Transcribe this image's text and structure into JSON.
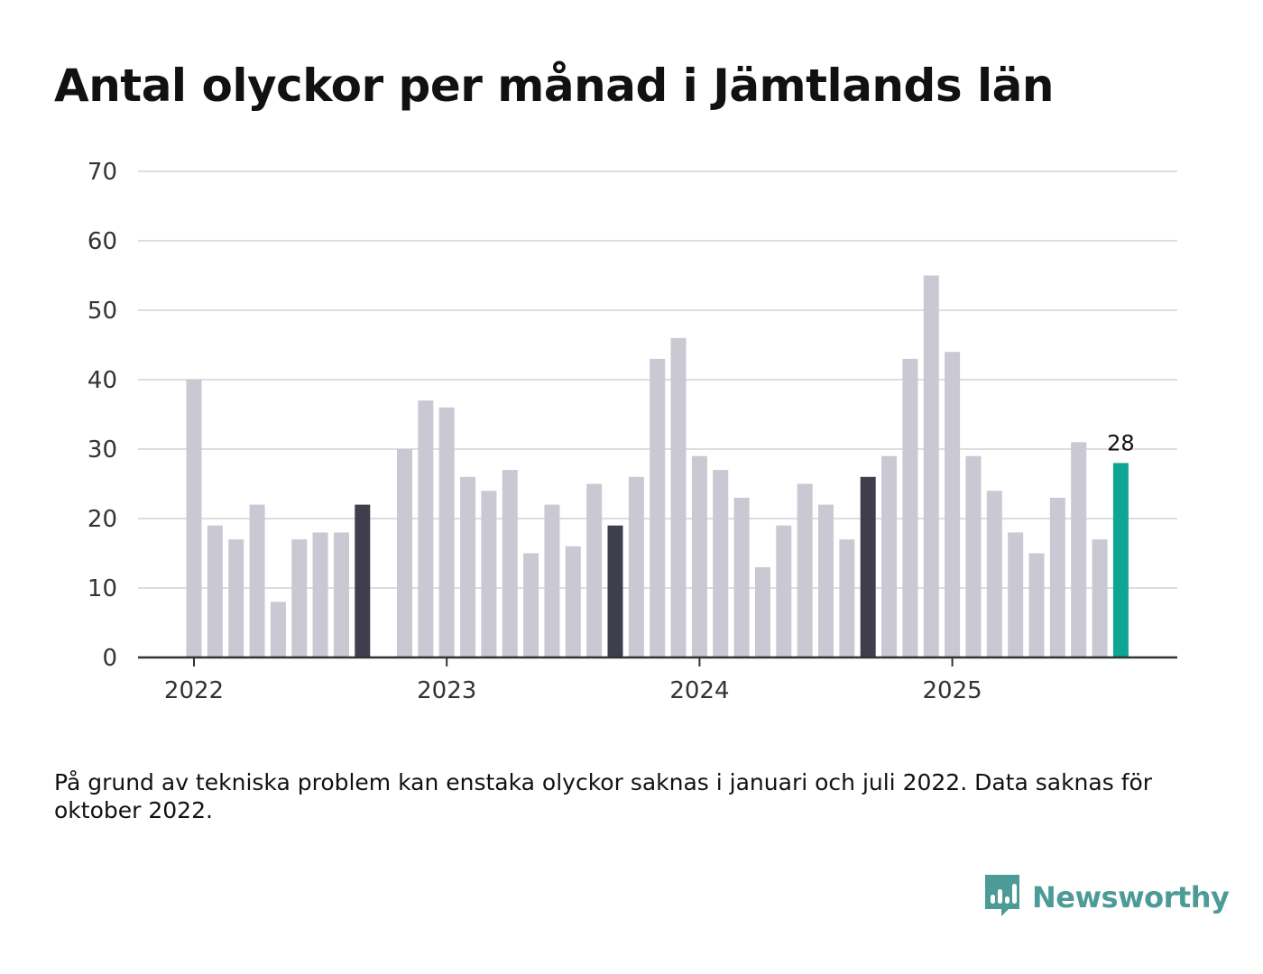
{
  "title": "Antal olyckor per månad i Jämtlands län",
  "footnote": "På grund av tekniska problem kan enstaka olyckor saknas i januari och juli 2022. Data saknas för oktober 2022.",
  "brand": {
    "name": "Newsworthy",
    "icon": "newsworthy-logo-icon"
  },
  "colors": {
    "bar": "#c9c8d3",
    "highlight": "#3f3e4c",
    "latest": "#0fa595",
    "grid": "#dddddd",
    "axis": "#333333"
  },
  "chart_data": {
    "type": "bar",
    "title": "Antal olyckor per månad i Jämtlands län",
    "xlabel": "",
    "ylabel": "",
    "ylim": [
      0,
      70
    ],
    "yticks": [
      0,
      10,
      20,
      30,
      40,
      50,
      60,
      70
    ],
    "grid": true,
    "x_tick_labels": [
      {
        "label": "2022",
        "month": "2022-01"
      },
      {
        "label": "2023",
        "month": "2023-01"
      },
      {
        "label": "2024",
        "month": "2024-01"
      },
      {
        "label": "2025",
        "month": "2025-01"
      }
    ],
    "start_month": "2021-10",
    "series": [
      {
        "name": "Antal olyckor",
        "points": [
          {
            "month": "2022-01",
            "value": 40
          },
          {
            "month": "2022-02",
            "value": 19
          },
          {
            "month": "2022-03",
            "value": 17
          },
          {
            "month": "2022-04",
            "value": 22
          },
          {
            "month": "2022-05",
            "value": 8
          },
          {
            "month": "2022-06",
            "value": 17
          },
          {
            "month": "2022-07",
            "value": 18
          },
          {
            "month": "2022-08",
            "value": 18
          },
          {
            "month": "2022-09",
            "value": 22,
            "highlight": true
          },
          {
            "month": "2022-10",
            "value": null
          },
          {
            "month": "2022-11",
            "value": 30
          },
          {
            "month": "2022-12",
            "value": 37
          },
          {
            "month": "2023-01",
            "value": 36
          },
          {
            "month": "2023-02",
            "value": 26
          },
          {
            "month": "2023-03",
            "value": 24
          },
          {
            "month": "2023-04",
            "value": 27
          },
          {
            "month": "2023-05",
            "value": 15
          },
          {
            "month": "2023-06",
            "value": 22
          },
          {
            "month": "2023-07",
            "value": 16
          },
          {
            "month": "2023-08",
            "value": 25
          },
          {
            "month": "2023-09",
            "value": 19,
            "highlight": true
          },
          {
            "month": "2023-10",
            "value": 26
          },
          {
            "month": "2023-11",
            "value": 43
          },
          {
            "month": "2023-12",
            "value": 46
          },
          {
            "month": "2024-01",
            "value": 29
          },
          {
            "month": "2024-02",
            "value": 27
          },
          {
            "month": "2024-03",
            "value": 23
          },
          {
            "month": "2024-04",
            "value": 13
          },
          {
            "month": "2024-05",
            "value": 19
          },
          {
            "month": "2024-06",
            "value": 25
          },
          {
            "month": "2024-07",
            "value": 22
          },
          {
            "month": "2024-08",
            "value": 17
          },
          {
            "month": "2024-09",
            "value": 26,
            "highlight": true
          },
          {
            "month": "2024-10",
            "value": 29
          },
          {
            "month": "2024-11",
            "value": 43
          },
          {
            "month": "2024-12",
            "value": 55
          },
          {
            "month": "2025-01",
            "value": 44
          },
          {
            "month": "2025-02",
            "value": 29
          },
          {
            "month": "2025-03",
            "value": 24
          },
          {
            "month": "2025-04",
            "value": 18
          },
          {
            "month": "2025-05",
            "value": 15
          },
          {
            "month": "2025-06",
            "value": 23
          },
          {
            "month": "2025-07",
            "value": 31
          },
          {
            "month": "2025-08",
            "value": 17
          },
          {
            "month": "2025-09",
            "value": 28,
            "latest": true
          }
        ]
      }
    ],
    "annotations": [
      {
        "month": "2025-09",
        "text": "28"
      }
    ]
  }
}
